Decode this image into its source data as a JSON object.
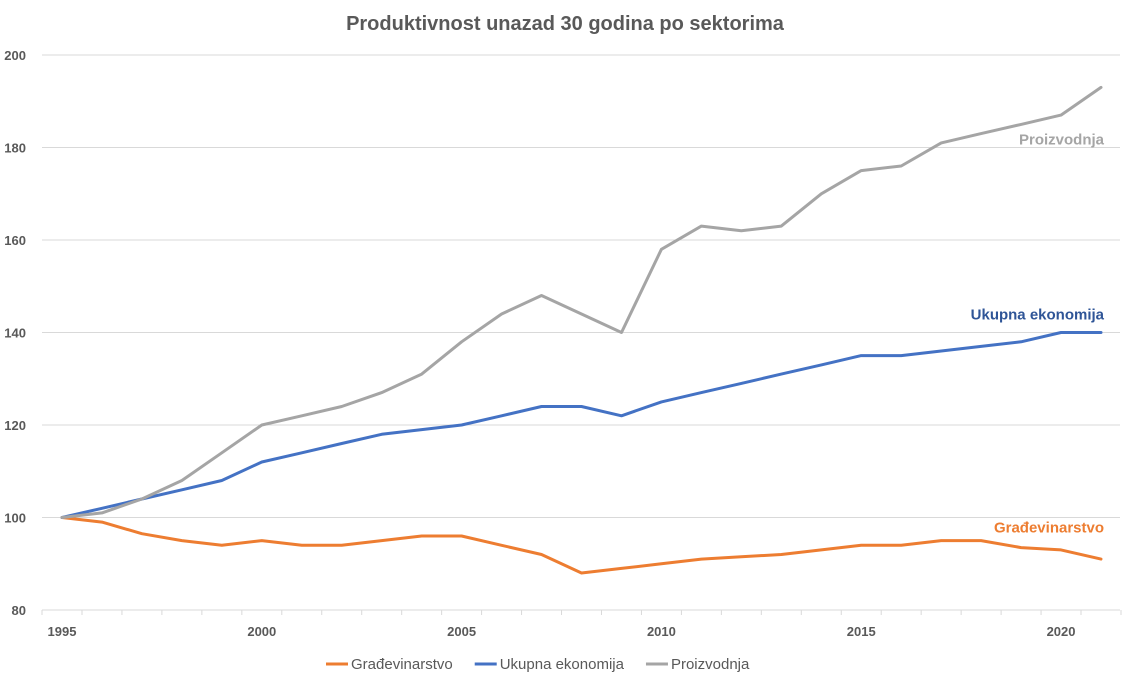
{
  "chart_data": {
    "type": "line",
    "title": "Produktivnost unazad 30 godina po sektorima",
    "xlabel": "",
    "ylabel": "",
    "x": [
      1995,
      1996,
      1997,
      1998,
      1999,
      2000,
      2001,
      2002,
      2003,
      2004,
      2005,
      2006,
      2007,
      2008,
      2009,
      2010,
      2011,
      2012,
      2013,
      2014,
      2015,
      2016,
      2017,
      2018,
      2019,
      2020,
      2021
    ],
    "xlim": [
      1995,
      2021
    ],
    "ylim": [
      80,
      200
    ],
    "yticks": [
      80,
      100,
      120,
      140,
      160,
      180,
      200
    ],
    "xticks": [
      1995,
      2000,
      2005,
      2010,
      2015,
      2020
    ],
    "grid": true,
    "legend_position": "bottom",
    "series": [
      {
        "name": "Građevinarstvo",
        "color": "#ed7d31",
        "values": [
          100,
          99,
          96.5,
          95,
          94,
          95,
          94,
          94,
          95,
          96,
          96,
          94,
          92,
          88,
          89,
          90,
          91,
          91.5,
          92,
          93,
          94,
          94,
          95,
          95,
          93.5,
          93,
          91
        ]
      },
      {
        "name": "Ukupna ekonomija",
        "color": "#4472c4",
        "label_color": "#2f5597",
        "values": [
          100,
          102,
          104,
          106,
          108,
          112,
          114,
          116,
          118,
          119,
          120,
          122,
          124,
          124,
          122,
          125,
          127,
          129,
          131,
          133,
          135,
          135,
          136,
          137,
          138,
          140,
          140
        ]
      },
      {
        "name": "Proizvodnja",
        "color": "#a5a5a5",
        "label_color": "#a5a5a5",
        "values": [
          100,
          101,
          104,
          108,
          114,
          120,
          122,
          124,
          127,
          131,
          138,
          144,
          148,
          144,
          140,
          158,
          163,
          162,
          163,
          170,
          175,
          176,
          181,
          183,
          185,
          187,
          193
        ]
      }
    ],
    "end_labels": [
      "Građevinarstvo",
      "Ukupna ekonomija",
      "Proizvodnja"
    ]
  }
}
